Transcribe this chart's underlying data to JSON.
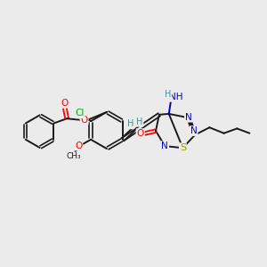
{
  "bg_color": "#ebebeb",
  "bond_color": "#1a1a1a",
  "colors": {
    "O": "#ff0000",
    "N": "#0000cc",
    "S": "#999900",
    "Cl": "#00aa00",
    "C": "#1a1a1a",
    "H": "#4a9090"
  },
  "figsize": [
    3.0,
    3.0
  ],
  "dpi": 100
}
